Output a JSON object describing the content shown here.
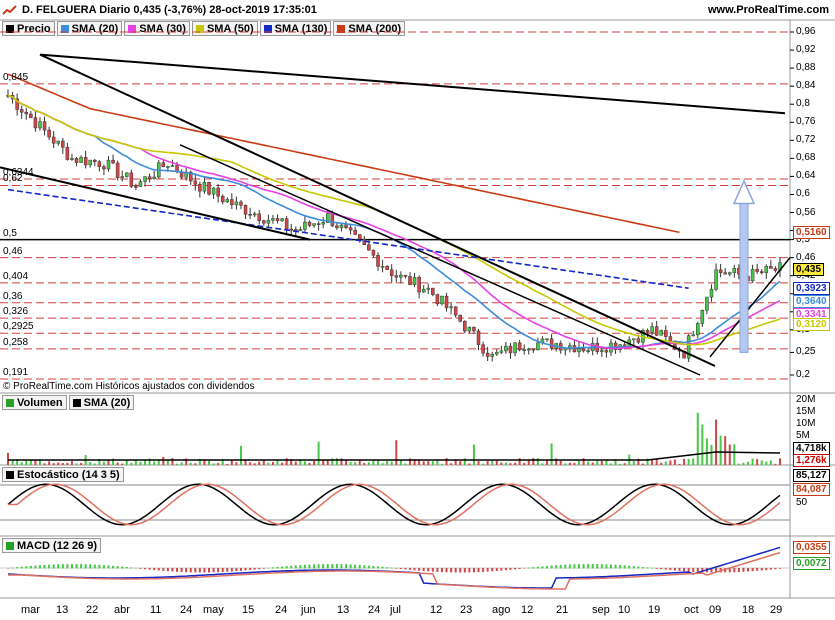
{
  "header": {
    "title": "D. FELGUERA Diario 0,435 (-3,76%) 28-oct-2019 17:35:01",
    "site": "www.ProRealTime.com"
  },
  "price_legend": [
    {
      "label": "Precio",
      "color": "#000000"
    },
    {
      "label": "SMA (20)",
      "color": "#3c8cdc"
    },
    {
      "label": "SMA (30)",
      "color": "#e640e6"
    },
    {
      "label": "SMA (50)",
      "color": "#c8c800"
    },
    {
      "label": "SMA (130)",
      "color": "#1428c8"
    },
    {
      "label": "SMA (200)",
      "color": "#c83c14"
    }
  ],
  "credit": "© ProRealTime.com  Históricos ajustados con dividendos",
  "price_axis_ticks": [
    "0,96",
    "0,92",
    "0,88",
    "0,84",
    "0,8",
    "0,76",
    "0,72",
    "0,68",
    "0,64",
    "0,6",
    "0,56",
    "0,52",
    "0,5",
    "0,46",
    "0,42",
    "0,38",
    "0,34",
    "0,3",
    "0,25",
    "0,2"
  ],
  "left_levels": [
    "0,845",
    "0,6344",
    "0,62",
    "0,5",
    "0,46",
    "0,404",
    "0,36",
    "0,326",
    "0,2925",
    "0,258",
    "0,191"
  ],
  "price_value_boxes": [
    {
      "text": "0,5160",
      "color": "#c83c14"
    },
    {
      "text": "0,435",
      "color": "#000000"
    },
    {
      "text": "0,3923",
      "color": "#1428c8"
    },
    {
      "text": "0,3640",
      "color": "#3c8cdc"
    },
    {
      "text": "0,3341",
      "color": "#e640e6"
    },
    {
      "text": "0,3120",
      "color": "#c8c800"
    }
  ],
  "volume": {
    "legend": [
      {
        "label": "Volumen",
        "color": "#000000"
      },
      {
        "label": "SMA (20)",
        "color": "#000000"
      }
    ],
    "ticks": [
      "20M",
      "15M",
      "10M",
      "5M"
    ],
    "boxes": [
      {
        "text": "4,718k",
        "color": "#000000"
      },
      {
        "text": "1,276k",
        "color": "#c80000"
      }
    ]
  },
  "stochastic": {
    "legend": "Estocástico (14 3 5)",
    "ticks": [
      "50"
    ],
    "boxes": [
      {
        "text": "85,127",
        "color": "#000000"
      },
      {
        "text": "84,087",
        "color": "#c83c14"
      }
    ]
  },
  "macd": {
    "legend": "MACD (12 26 9)",
    "boxes": [
      {
        "text": "0,0355",
        "color": "#c83c14"
      },
      {
        "text": "0,0072",
        "color": "#28a028"
      }
    ]
  },
  "x_labels": [
    "mar",
    "13",
    "22",
    "abr",
    "11",
    "24",
    "may",
    "15",
    "24",
    "jun",
    "13",
    "24",
    "jul",
    "12",
    "23",
    "ago",
    "12",
    "21",
    "sep",
    "10",
    "19",
    "oct",
    "09",
    "18",
    "29"
  ],
  "chart_data": {
    "type": "candlestick",
    "title": "D. FELGUERA Diario 0,435 (-3,76%) 28-oct-2019 17:35:01",
    "ylim": [
      0.18,
      0.97
    ],
    "close_series_approx": [
      {
        "x": "mar",
        "y": 0.82
      },
      {
        "x": "13",
        "y": 0.75
      },
      {
        "x": "22",
        "y": 0.68
      },
      {
        "x": "abr",
        "y": 0.67
      },
      {
        "x": "11",
        "y": 0.62
      },
      {
        "x": "24",
        "y": 0.67
      },
      {
        "x": "may",
        "y": 0.62
      },
      {
        "x": "15",
        "y": 0.58
      },
      {
        "x": "24",
        "y": 0.55
      },
      {
        "x": "jun",
        "y": 0.52
      },
      {
        "x": "13",
        "y": 0.55
      },
      {
        "x": "24",
        "y": 0.49
      },
      {
        "x": "jul",
        "y": 0.42
      },
      {
        "x": "12",
        "y": 0.39
      },
      {
        "x": "23",
        "y": 0.32
      },
      {
        "x": "ago",
        "y": 0.24
      },
      {
        "x": "12",
        "y": 0.27
      },
      {
        "x": "21",
        "y": 0.27
      },
      {
        "x": "sep",
        "y": 0.26
      },
      {
        "x": "10",
        "y": 0.27
      },
      {
        "x": "19",
        "y": 0.3
      },
      {
        "x": "oct",
        "y": 0.25
      },
      {
        "x": "09",
        "y": 0.43
      },
      {
        "x": "18",
        "y": 0.42
      },
      {
        "x": "29",
        "y": 0.435
      }
    ],
    "last_values": {
      "precio": 0.435,
      "sma20": 0.364,
      "sma30": 0.3341,
      "sma50": 0.312,
      "sma130": 0.3923,
      "sma200": 0.516
    }
  }
}
